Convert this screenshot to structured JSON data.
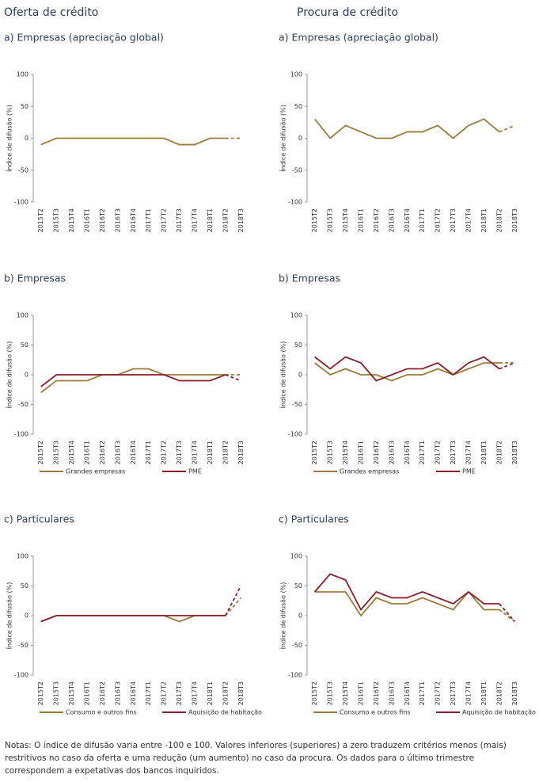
{
  "columns": [
    "Oferta de crédito",
    "Procura de crédito"
  ],
  "notes": "Notas: O índice de difusão varia entre -100 e 100. Valores inferiores (superiores) a zero traduzem critérios menos (mais) restritivos no caso da oferta e uma redução (um aumento) no caso da procura. Os dados para o último trimestre correspondem a expetativas dos bancos inquiridos.",
  "chart_data": [
    {
      "type": "line",
      "title": "a) Empresas (apreciação global)",
      "y_label": "Índice de difusão (%)",
      "categories": [
        "2015T2",
        "2015T3",
        "2015T4",
        "2016T1",
        "2016T2",
        "2016T3",
        "2016T4",
        "2017T1",
        "2017T2",
        "2017T3",
        "2017T4",
        "2018T1",
        "2018T2",
        "2018T3"
      ],
      "values": [
        -10,
        0,
        0,
        0,
        0,
        0,
        0,
        0,
        0,
        -10,
        -10,
        0,
        0,
        0
      ],
      "color": "#9a7b3a",
      "ylim": [
        -100,
        100
      ],
      "yticks": [
        -100,
        -50,
        0,
        50,
        100
      ],
      "dashed_last_segment": true
    },
    {
      "type": "line",
      "title": "a) Empresas (apreciação global)",
      "y_label": "Índice de difusão (%)",
      "categories": [
        "2015T2",
        "2015T3",
        "2015T4",
        "2016T1",
        "2016T2",
        "2016T3",
        "2016T4",
        "2017T1",
        "2017T2",
        "2017T3",
        "2017T4",
        "2018T1",
        "2018T2",
        "2018T3"
      ],
      "values": [
        30,
        0,
        20,
        10,
        0,
        0,
        10,
        10,
        20,
        0,
        20,
        30,
        10,
        20
      ],
      "color": "#9a7b3a",
      "ylim": [
        -100,
        100
      ],
      "yticks": [
        -100,
        -50,
        0,
        50,
        100
      ],
      "dashed_last_segment": true
    },
    {
      "type": "line",
      "title": "b) Empresas",
      "y_label": "Índice de difusão (%)",
      "categories": [
        "2015T2",
        "2015T3",
        "2015T4",
        "2016T1",
        "2016T2",
        "2016T3",
        "2016T4",
        "2017T1",
        "2017T2",
        "2017T3",
        "2017T4",
        "2018T1",
        "2018T2",
        "2018T3"
      ],
      "series": [
        {
          "name": "Grandes empresas",
          "color": "#9a7b3a",
          "values": [
            -30,
            -10,
            -10,
            -10,
            0,
            0,
            10,
            10,
            0,
            0,
            0,
            0,
            0,
            0
          ]
        },
        {
          "name": "PME",
          "color": "#8b1f2a",
          "values": [
            -20,
            0,
            0,
            0,
            0,
            0,
            0,
            0,
            0,
            -10,
            -10,
            -10,
            0,
            -10
          ]
        }
      ],
      "ylim": [
        -100,
        100
      ],
      "yticks": [
        -100,
        -50,
        0,
        50,
        100
      ],
      "dashed_last_segment": true
    },
    {
      "type": "line",
      "title": "b) Empresas",
      "y_label": "Índice de difusão (%)",
      "categories": [
        "2015T2",
        "2015T3",
        "2015T4",
        "2016T1",
        "2016T2",
        "2016T3",
        "2016T4",
        "2017T1",
        "2017T2",
        "2017T3",
        "2017T4",
        "2018T1",
        "2018T2",
        "2018T3"
      ],
      "series": [
        {
          "name": "Grandes empresas",
          "color": "#9a7b3a",
          "values": [
            20,
            0,
            10,
            0,
            0,
            -10,
            0,
            0,
            10,
            0,
            10,
            20,
            20,
            20
          ]
        },
        {
          "name": "PME",
          "color": "#8b1f2a",
          "values": [
            30,
            10,
            30,
            20,
            -10,
            0,
            10,
            10,
            20,
            0,
            20,
            30,
            10,
            20
          ]
        }
      ],
      "ylim": [
        -100,
        100
      ],
      "yticks": [
        -100,
        -50,
        0,
        50,
        100
      ],
      "dashed_last_segment": true
    },
    {
      "type": "line",
      "title": "c) Particulares",
      "y_label": "Índice de difusão (%)",
      "categories": [
        "2015T2",
        "2015T3",
        "2015T4",
        "2016T1",
        "2016T2",
        "2016T3",
        "2016T4",
        "2017T1",
        "2017T2",
        "2017T3",
        "2017T4",
        "2018T1",
        "2018T2",
        "2018T3"
      ],
      "series": [
        {
          "name": "Consumo e outros fins",
          "color": "#9a7b3a",
          "values": [
            -10,
            0,
            0,
            0,
            0,
            0,
            0,
            0,
            0,
            -10,
            0,
            0,
            0,
            30
          ]
        },
        {
          "name": "Aquisição de habitação",
          "color": "#8b1f2a",
          "values": [
            -10,
            0,
            0,
            0,
            0,
            0,
            0,
            0,
            0,
            0,
            0,
            0,
            0,
            50
          ]
        }
      ],
      "ylim": [
        -100,
        100
      ],
      "yticks": [
        -100,
        -50,
        0,
        50,
        100
      ],
      "dashed_last_segment": true
    },
    {
      "type": "line",
      "title": "c) Particulares",
      "y_label": "Índice de difusão (%)",
      "categories": [
        "2015T2",
        "2015T3",
        "2015T4",
        "2016T1",
        "2016T2",
        "2016T3",
        "2016T4",
        "2017T1",
        "2017T2",
        "2017T3",
        "2017T4",
        "2018T1",
        "2018T2",
        "2018T3"
      ],
      "series": [
        {
          "name": "Consumo e outros fins",
          "color": "#9a7b3a",
          "values": [
            40,
            40,
            40,
            0,
            30,
            20,
            20,
            30,
            20,
            10,
            40,
            10,
            10,
            -10
          ]
        },
        {
          "name": "Aquisição de habitação",
          "color": "#8b1f2a",
          "values": [
            40,
            70,
            60,
            10,
            40,
            30,
            30,
            40,
            30,
            20,
            40,
            20,
            20,
            -10
          ]
        }
      ],
      "ylim": [
        -100,
        100
      ],
      "yticks": [
        -100,
        -50,
        0,
        50,
        100
      ],
      "dashed_last_segment": true
    }
  ]
}
